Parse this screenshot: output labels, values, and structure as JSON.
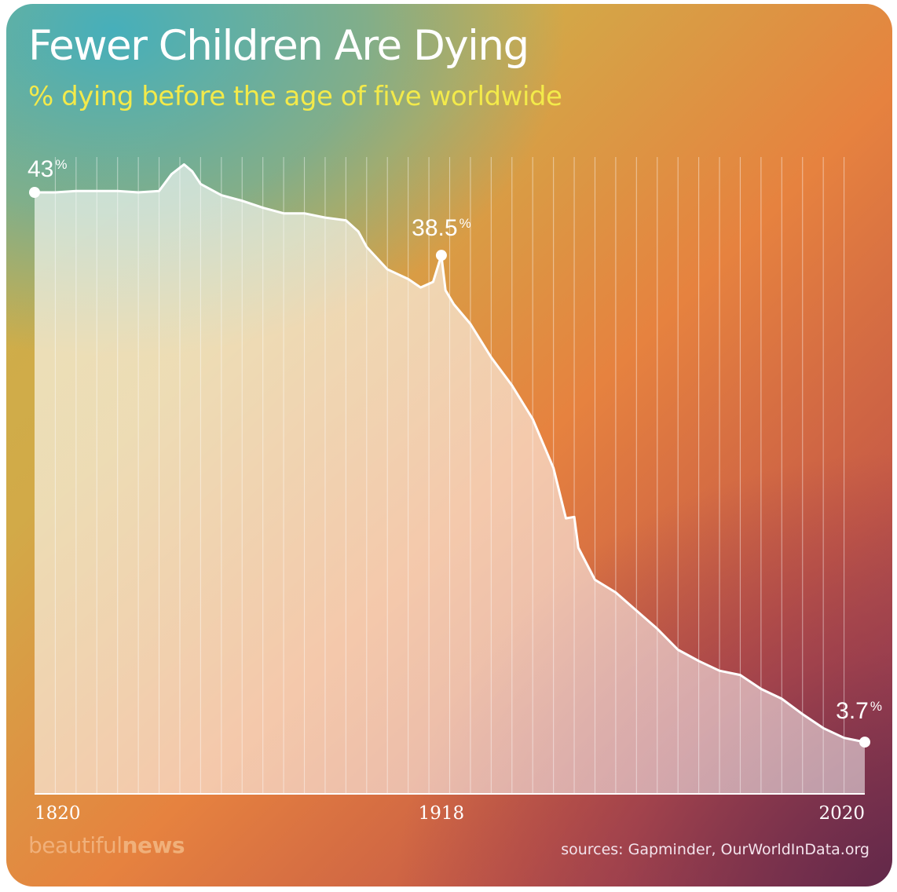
{
  "header": {
    "title": "Fewer Children Are Dying",
    "subtitle": "% dying before the age of five worldwide"
  },
  "footer": {
    "brand_light": "beautiful",
    "brand_bold": "news",
    "sources": "sources: Gapminder, OurWorldInData.org"
  },
  "colors": {
    "line": "#ffffff",
    "subtitle": "#f3ea4a",
    "brand": "#f0b07a"
  },
  "chart_data": {
    "type": "area",
    "title": "Fewer Children Are Dying",
    "subtitle": "% dying before the age of five worldwide",
    "xlabel": "",
    "ylabel": "",
    "xlim": [
      1820,
      2020
    ],
    "ylim": [
      0,
      43
    ],
    "grid": "vertical",
    "x_ticks": [
      1820,
      1918,
      2020
    ],
    "annotations": [
      {
        "x": 1820,
        "y": 43,
        "value": "43",
        "unit": "%"
      },
      {
        "x": 1918,
        "y": 38.5,
        "value": "38.5",
        "unit": "%"
      },
      {
        "x": 2020,
        "y": 3.7,
        "value": "3.7",
        "unit": "%"
      }
    ],
    "series": [
      {
        "name": "",
        "points": [
          [
            1820,
            43.0
          ],
          [
            1825,
            43.0
          ],
          [
            1830,
            43.1
          ],
          [
            1835,
            43.1
          ],
          [
            1840,
            43.1
          ],
          [
            1845,
            43.0
          ],
          [
            1850,
            43.1
          ],
          [
            1853,
            44.3
          ],
          [
            1856,
            45.0
          ],
          [
            1858,
            44.5
          ],
          [
            1860,
            43.6
          ],
          [
            1865,
            42.8
          ],
          [
            1870,
            42.4
          ],
          [
            1875,
            41.9
          ],
          [
            1880,
            41.5
          ],
          [
            1885,
            41.5
          ],
          [
            1890,
            41.2
          ],
          [
            1895,
            41.0
          ],
          [
            1898,
            40.2
          ],
          [
            1900,
            39.1
          ],
          [
            1905,
            37.5
          ],
          [
            1910,
            36.8
          ],
          [
            1913,
            36.2
          ],
          [
            1916,
            36.6
          ],
          [
            1918,
            38.5
          ],
          [
            1919,
            36.0
          ],
          [
            1921,
            35.0
          ],
          [
            1925,
            33.6
          ],
          [
            1930,
            31.2
          ],
          [
            1935,
            29.2
          ],
          [
            1940,
            26.8
          ],
          [
            1945,
            23.3
          ],
          [
            1948,
            19.7
          ],
          [
            1950,
            19.8
          ],
          [
            1951,
            17.6
          ],
          [
            1955,
            15.3
          ],
          [
            1960,
            14.4
          ],
          [
            1965,
            13.1
          ],
          [
            1970,
            11.8
          ],
          [
            1975,
            10.3
          ],
          [
            1980,
            9.5
          ],
          [
            1985,
            8.8
          ],
          [
            1990,
            8.5
          ],
          [
            1995,
            7.5
          ],
          [
            2000,
            6.8
          ],
          [
            2005,
            5.7
          ],
          [
            2010,
            4.7
          ],
          [
            2015,
            4.0
          ],
          [
            2020,
            3.7
          ]
        ]
      }
    ]
  }
}
